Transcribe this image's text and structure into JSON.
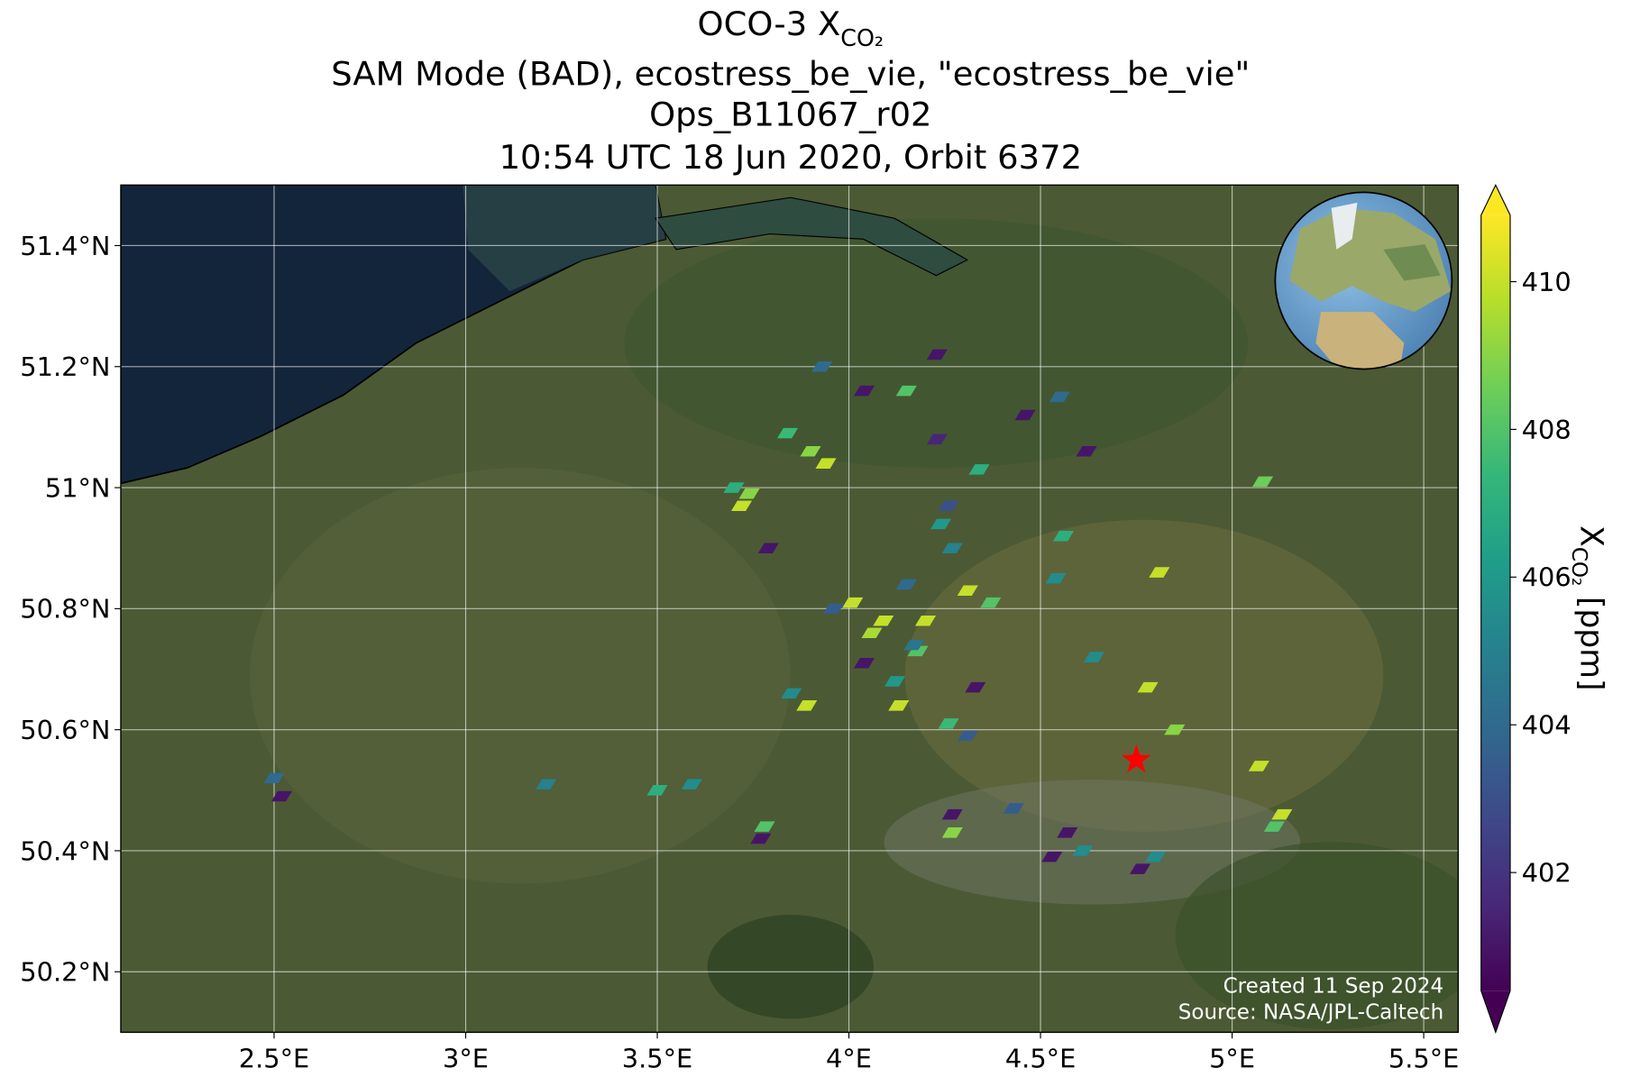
{
  "chart_data": {
    "type": "map",
    "title_main": "OCO-3 X",
    "title_sub": "CO₂",
    "title_lines": [
      "SAM Mode (BAD), ecostress_be_vie, \"ecostress_be_vie\"",
      "Ops_B11067_r02",
      "10:54 UTC 18 Jun 2020, Orbit 6372"
    ],
    "xlim": [
      2.1,
      5.59
    ],
    "ylim": [
      50.1,
      51.5
    ],
    "xticks": [
      {
        "value": 2.5,
        "label": "2.5°E"
      },
      {
        "value": 3,
        "label": "3°E"
      },
      {
        "value": 3.5,
        "label": "3.5°E"
      },
      {
        "value": 4,
        "label": "4°E"
      },
      {
        "value": 4.5,
        "label": "4.5°E"
      },
      {
        "value": 5,
        "label": "5°E"
      },
      {
        "value": 5.5,
        "label": "5.5°E"
      }
    ],
    "yticks": [
      {
        "value": 50.2,
        "label": "50.2°N"
      },
      {
        "value": 50.4,
        "label": "50.4°N"
      },
      {
        "value": 50.6,
        "label": "50.6°N"
      },
      {
        "value": 50.8,
        "label": "50.8°N"
      },
      {
        "value": 51,
        "label": "51°N"
      },
      {
        "value": 51.2,
        "label": "51.2°N"
      },
      {
        "value": 51.4,
        "label": "51.4°N"
      }
    ],
    "grid": true,
    "colormap": "viridis",
    "clim": [
      400.4,
      410.9
    ],
    "cticks": [
      402,
      404,
      406,
      408,
      410
    ],
    "colorbar_label_main": "X",
    "colorbar_label_sub": "CO₂",
    "colorbar_label_unit": "[ppm]",
    "lon": [
      3.72,
      3.74,
      3.7,
      3.94,
      3.9,
      3.93,
      4.04,
      4.15,
      4.23,
      4.34,
      4.26,
      4.27,
      4.31,
      4.01,
      4.09,
      4.2,
      3.96,
      4.18,
      4.04,
      4.12,
      4.13,
      3.85,
      3.89,
      4.26,
      4.81,
      4.78,
      4.85,
      5.07,
      5.13,
      5.11,
      5.08,
      4.62,
      4.55,
      4.46,
      4.23,
      2.5,
      2.52,
      3.21,
      3.5,
      3.59,
      3.78,
      3.77,
      4.27,
      4.27,
      4.43,
      4.57,
      4.53,
      4.61,
      4.8,
      4.76,
      4.64,
      4.54,
      4.56,
      3.79,
      3.84,
      4.15,
      4.37,
      4.33,
      4.31,
      4.06,
      4.17,
      4.24
    ],
    "lat": [
      50.97,
      50.99,
      51.0,
      51.04,
      51.06,
      51.2,
      51.16,
      51.16,
      51.08,
      51.03,
      50.97,
      50.9,
      50.83,
      50.81,
      50.78,
      50.78,
      50.8,
      50.73,
      50.71,
      50.68,
      50.64,
      50.66,
      50.64,
      50.61,
      50.86,
      50.67,
      50.6,
      50.54,
      50.46,
      50.44,
      51.01,
      51.06,
      51.15,
      51.12,
      51.22,
      50.52,
      50.49,
      50.51,
      50.5,
      50.51,
      50.44,
      50.42,
      50.46,
      50.43,
      50.47,
      50.43,
      50.39,
      50.4,
      50.39,
      50.37,
      50.72,
      50.85,
      50.92,
      50.9,
      51.09,
      50.84,
      50.81,
      50.67,
      50.59,
      50.76,
      50.74,
      50.94
    ],
    "values": [
      410,
      409,
      407,
      410,
      409,
      404,
      401,
      408,
      401.5,
      407,
      403,
      405,
      410,
      410,
      410,
      410,
      403.5,
      408,
      401,
      406,
      410,
      405.5,
      410,
      407.5,
      410,
      410,
      409,
      410,
      410,
      408,
      408.5,
      401,
      404,
      401,
      401,
      404,
      401,
      405,
      407,
      405.5,
      408,
      401,
      401,
      409,
      403.5,
      401,
      401,
      405.5,
      405.5,
      401,
      405.5,
      405.5,
      407,
      401,
      407.5,
      404,
      408,
      401,
      403.5,
      409.5,
      404.5,
      406
    ],
    "target": {
      "lon": 4.75,
      "lat": 50.55
    },
    "credits": [
      "Created 11 Sep 2024",
      "Source: NASA/JPL-Caltech"
    ]
  }
}
